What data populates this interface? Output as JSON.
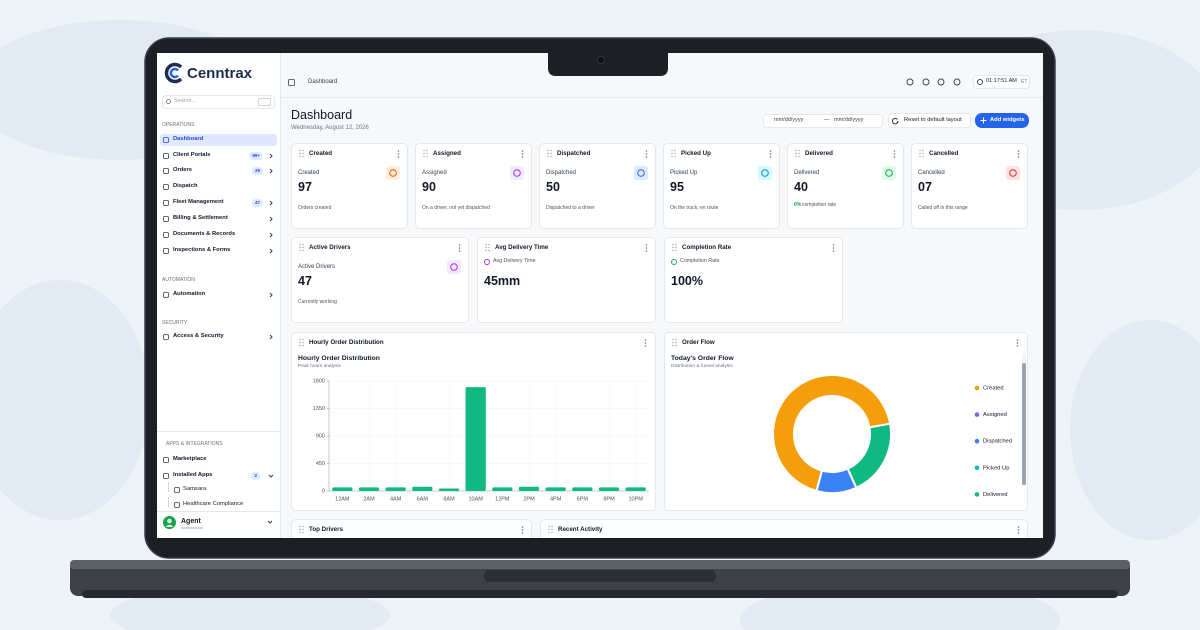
{
  "sidebar": {
    "logo": "Cenntrax",
    "search": "Search...",
    "sections": [
      {
        "title": "OPERATIONS",
        "items": [
          {
            "label": "Dashboard"
          },
          {
            "label": "Client Portals",
            "badge": "99+"
          },
          {
            "label": "Orders",
            "badge": "29"
          },
          {
            "label": "Dispatch"
          },
          {
            "label": "Fleet Management",
            "badge": "47"
          },
          {
            "label": "Billing & Settlement"
          },
          {
            "label": "Documents & Records"
          },
          {
            "label": "Inspections & Forms"
          }
        ]
      },
      {
        "title": "AUTOMATION",
        "items": [
          {
            "label": "Automation"
          }
        ]
      },
      {
        "title": "SECURITY",
        "items": [
          {
            "label": "Access & Security"
          }
        ]
      },
      {
        "title": "APPS & INTEGRATIONS",
        "items": [
          {
            "label": "Marketplace"
          },
          {
            "label": "Installed Apps",
            "badge": "2"
          },
          {
            "label": "Samsara"
          },
          {
            "label": "Healthcare Compliance"
          }
        ]
      }
    ],
    "user": "Agent"
  },
  "header": {
    "breadcrumb": "Dashboard",
    "time": "01:17:51 AM",
    "zone": "ET"
  },
  "page": {
    "title": "Dashboard",
    "date": "Wednesday, August 12, 2026",
    "date_from": "mm/dd/yyyy",
    "separator": "—",
    "date_to": "mm/dd/yyyy",
    "reset": "Reset to default layout",
    "add": "Add widgets"
  },
  "stat_cards": [
    {
      "header": "Created",
      "label": "Created",
      "value": "97",
      "note": "Orders created"
    },
    {
      "header": "Assigned",
      "label": "Assigned",
      "value": "90",
      "note": "On a driver, not yet dispatched"
    },
    {
      "header": "Dispatched",
      "label": "Dispatched",
      "value": "50",
      "note": "Dispatched to a driver"
    },
    {
      "header": "Picked Up",
      "label": "Picked Up",
      "value": "95",
      "note": "On the truck, en route"
    },
    {
      "header": "Delivered",
      "label": "Delivered",
      "value": "40",
      "highlight": "0%",
      "note": "completion rate"
    },
    {
      "header": "Cancelled",
      "label": "Cancelled",
      "value": "07",
      "note": "Called off in this range"
    }
  ],
  "metric_cards": [
    {
      "header": "Active Drivers",
      "label": "Active Drivers",
      "value": "47",
      "note": "Currently working"
    },
    {
      "header": "Avg Delivery Time",
      "label": "Avg Delivery Time",
      "value": "45mm"
    },
    {
      "header": "Completion Rate",
      "label": "Completion Rate",
      "value": "100%"
    }
  ],
  "widgets": {
    "hourly": "Hourly Order Distribution",
    "flow": "Order Flow",
    "top_drivers": "Top Drivers",
    "recent": "Recent Activity"
  },
  "chart_data": [
    {
      "type": "bar",
      "title": "Hourly Order Distribution",
      "subtitle": "Peak hours analysis",
      "categories": [
        "12AM",
        "2AM",
        "4AM",
        "6AM",
        "8AM",
        "10AM",
        "12PM",
        "2PM",
        "4PM",
        "6PM",
        "8PM",
        "10PM"
      ],
      "values": [
        60,
        60,
        60,
        70,
        40,
        1700,
        60,
        70,
        60,
        60,
        60,
        60
      ],
      "color": "#10b981",
      "ylim": [
        0,
        1800
      ],
      "yticks": [
        0,
        450,
        900,
        1350,
        1800
      ],
      "grid": true
    },
    {
      "type": "pie",
      "title": "Today's Order Flow",
      "subtitle": "Distribution & funnel analysis",
      "categories": [
        "Created",
        "Assigned",
        "Dispatched",
        "Picked Up",
        "Delivered"
      ],
      "values": [
        68,
        0,
        11,
        0,
        21
      ],
      "colors": [
        "#f59e0b",
        "#8b5cf6",
        "#3b82f6",
        "#06b6d4",
        "#10b981"
      ],
      "donut": true,
      "legend": "right"
    }
  ]
}
